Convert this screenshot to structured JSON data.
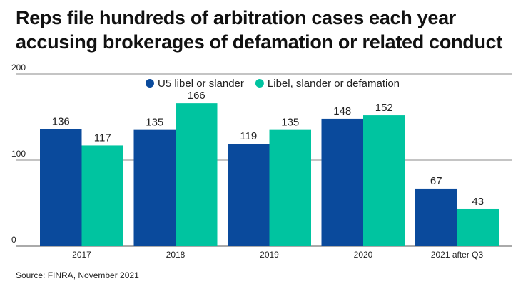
{
  "title_lines": [
    "Reps file hundreds of arbitration cases each year",
    "accusing brokerages of defamation or related conduct"
  ],
  "source": "Source: FINRA, November 2021",
  "chart_data": {
    "type": "bar",
    "title": "Reps file hundreds of arbitration cases each year accusing brokerages of defamation or related conduct",
    "categories": [
      "2017",
      "2018",
      "2019",
      "2020",
      "2021 after Q3"
    ],
    "series": [
      {
        "name": "U5 libel or slander",
        "color": "#0a4a9c",
        "values": [
          136,
          135,
          119,
          148,
          67
        ]
      },
      {
        "name": "Libel, slander or defamation",
        "color": "#00c4a0",
        "values": [
          117,
          166,
          135,
          152,
          43
        ]
      }
    ],
    "ylim": [
      0,
      200
    ],
    "yticks": [
      "0",
      "100",
      "200"
    ],
    "grid": true,
    "legend": "top-right",
    "xlabel": "",
    "ylabel": ""
  }
}
